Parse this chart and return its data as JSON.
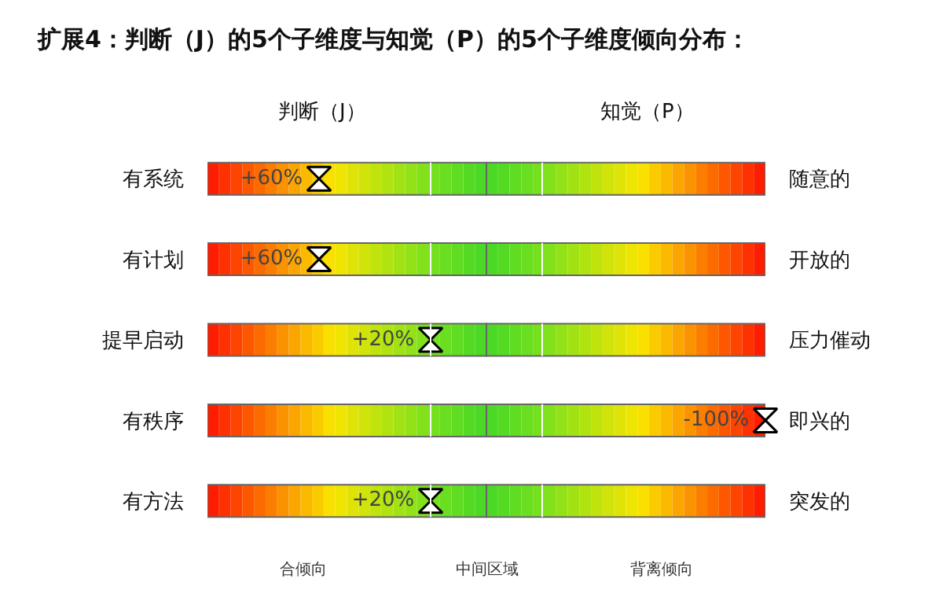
{
  "chart_data": {
    "type": "other",
    "title": "扩展4：判断（J）的5个子维度与知觉（P）的5个子维度倾向分布：",
    "annotations": [
      "判断（J）",
      "知觉（P）",
      "合倾向",
      "中间区域",
      "背离倾向"
    ],
    "categories": [
      "有系统",
      "有计划",
      "提早启动",
      "有秩序",
      "有方法"
    ],
    "y2_categories": [
      "随意的",
      "开放的",
      "压力催动",
      "即兴的",
      "突发的"
    ],
    "values": [
      60,
      60,
      20,
      -100,
      20
    ],
    "value_labels": [
      "+60%",
      "+60%",
      "+20%",
      "-100%",
      "+20%"
    ],
    "legend": false
  }
}
